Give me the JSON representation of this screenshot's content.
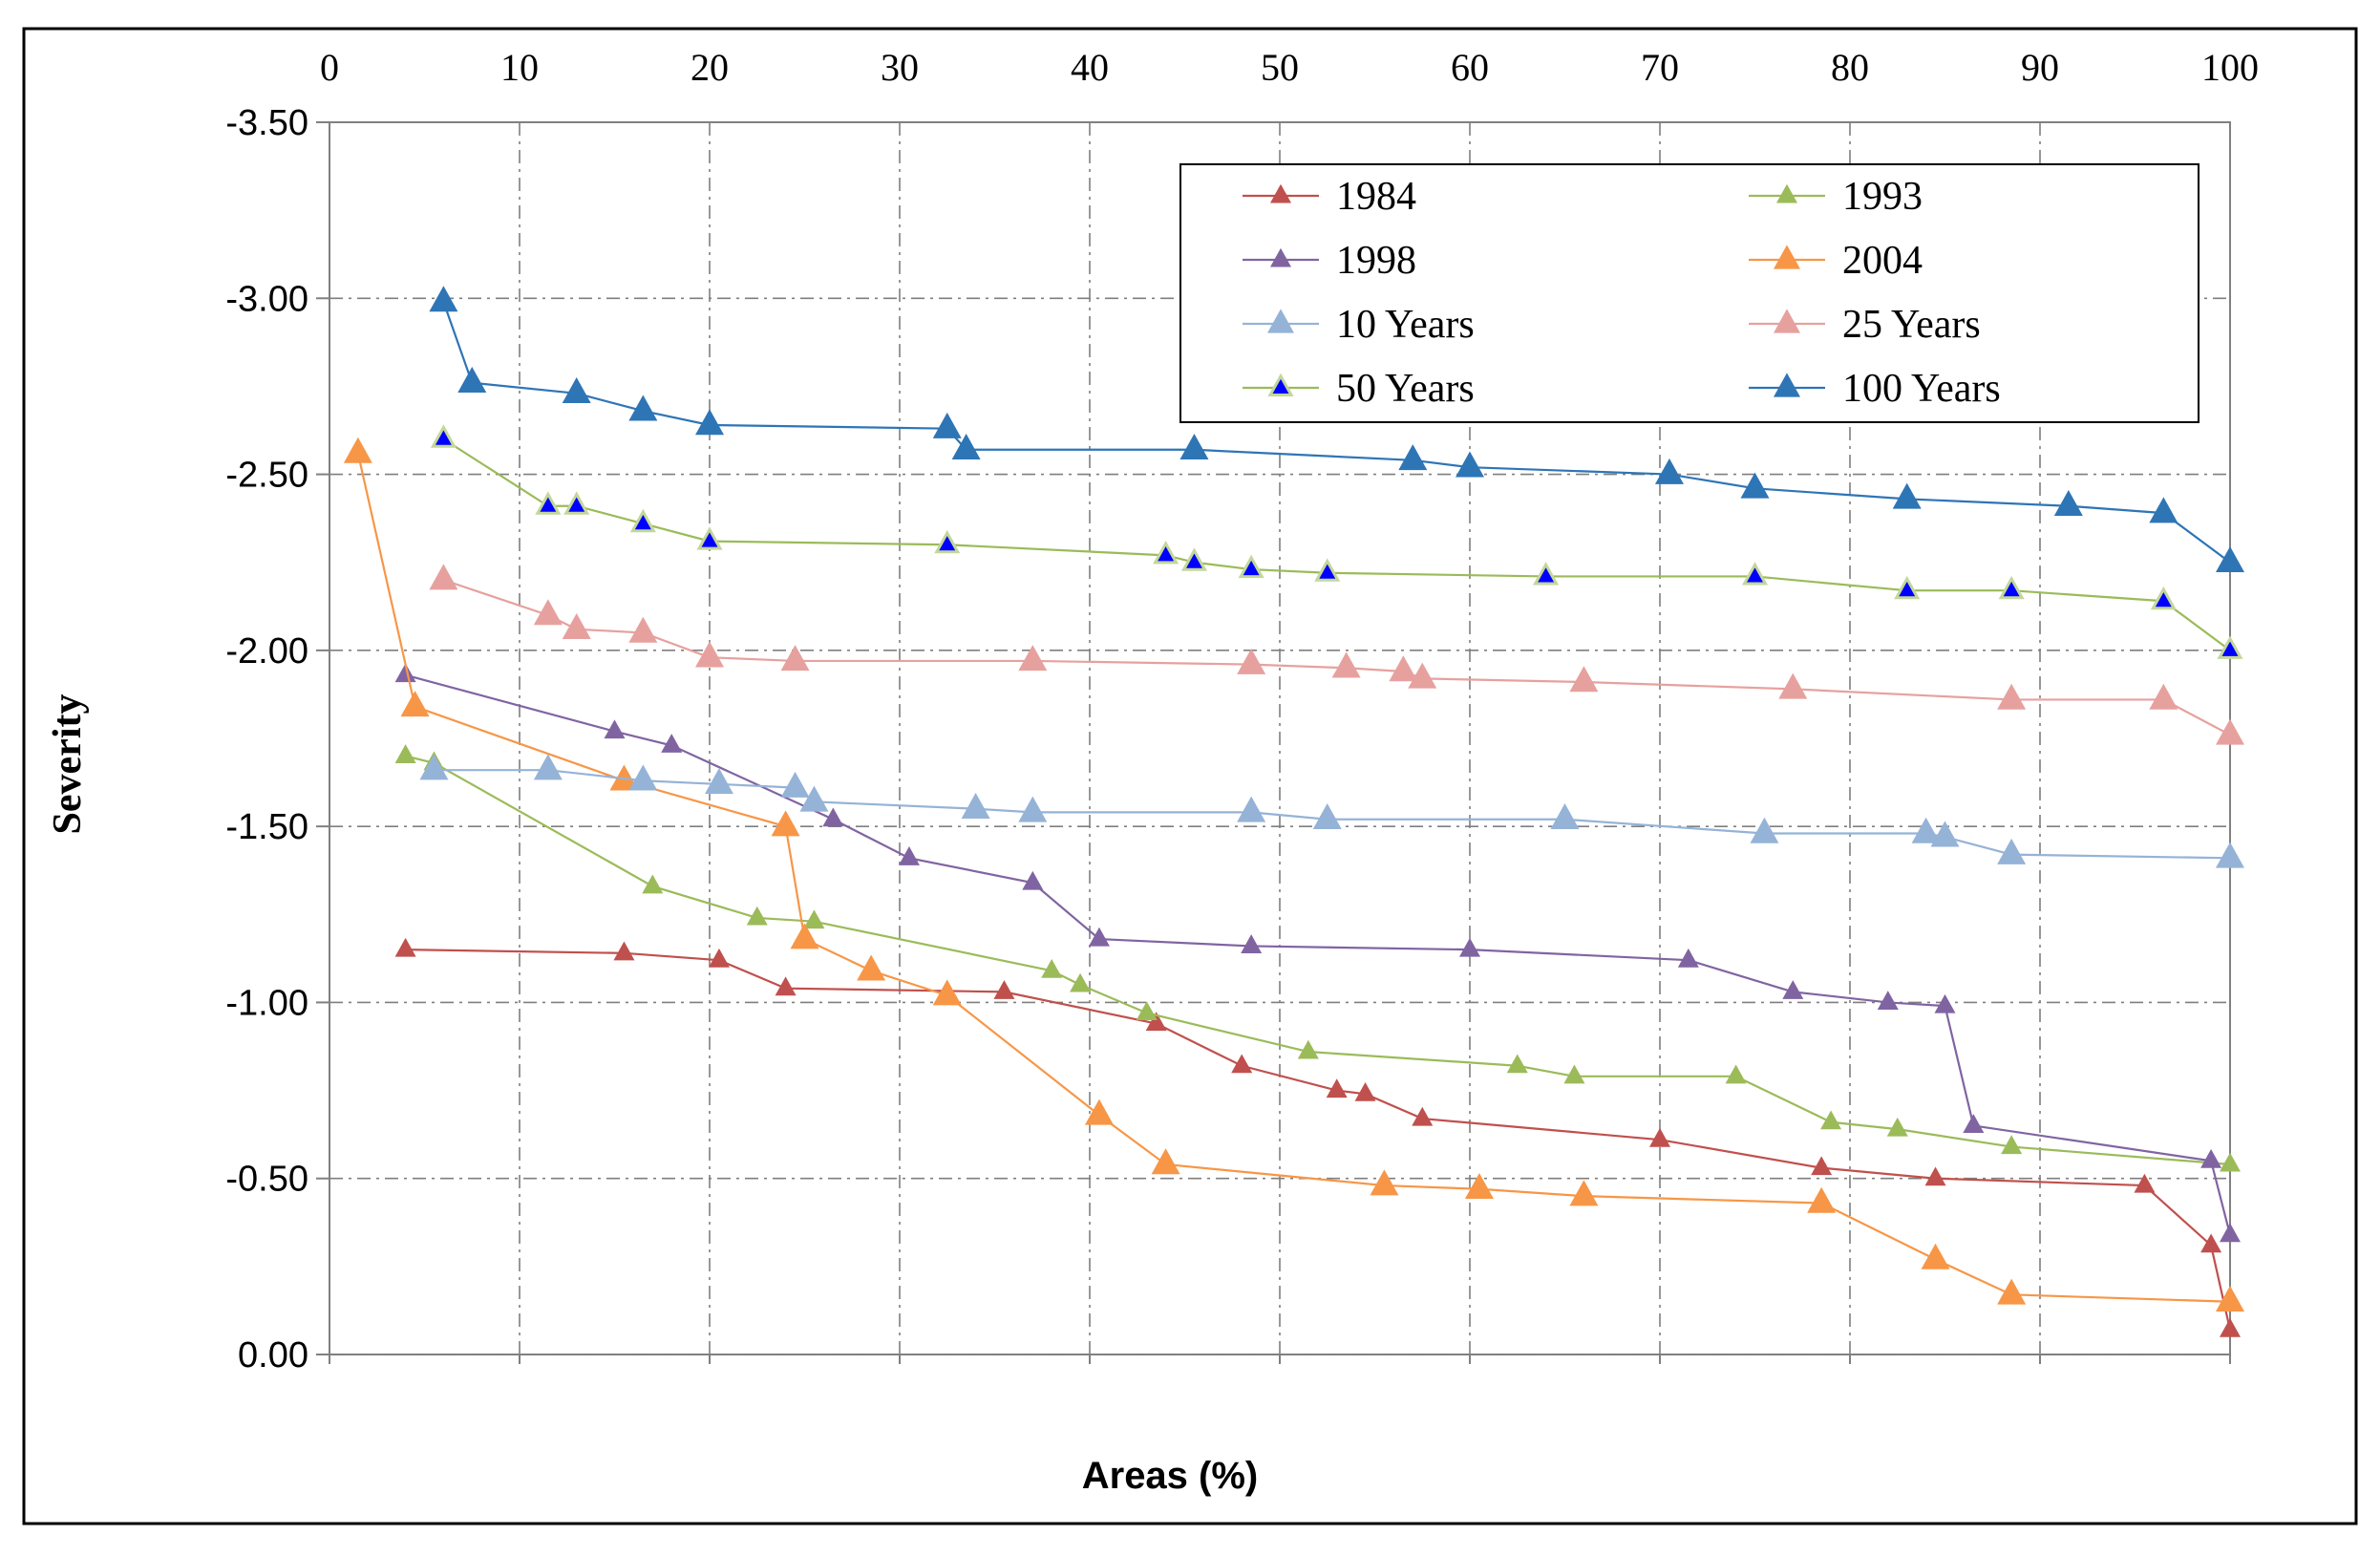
{
  "chart_data": {
    "type": "line",
    "title": "",
    "xlabel": "Areas (%)",
    "ylabel": "Severity",
    "xlim": [
      0,
      100
    ],
    "ylim": [
      0,
      -3.5
    ],
    "x_axis_position": "top",
    "y_axis_inverted": true,
    "x_ticks": [
      "0",
      "10",
      "20",
      "30",
      "40",
      "50",
      "60",
      "70",
      "80",
      "90",
      "100"
    ],
    "y_ticks": [
      "-3.50",
      "-3.00",
      "-2.50",
      "-2.00",
      "-1.50",
      "-1.00",
      "-0.50",
      "0.00"
    ],
    "grid": true,
    "legend_position": "top-right",
    "series": [
      {
        "name": "1984",
        "color": "#c0504d",
        "marker_color": "#c0504d",
        "marker_size": "small",
        "x": [
          4,
          15.5,
          20.5,
          24,
          35.5,
          43.5,
          48,
          53,
          54.5,
          57.5,
          70,
          78.5,
          84.5,
          95.5,
          99,
          100
        ],
        "y": [
          -1.15,
          -1.14,
          -1.12,
          -1.04,
          -1.03,
          -0.94,
          -0.82,
          -0.75,
          -0.74,
          -0.67,
          -0.61,
          -0.53,
          -0.5,
          -0.48,
          -0.31,
          -0.07
        ]
      },
      {
        "name": "1993",
        "color": "#9bbb59",
        "marker_color": "#9bbb59",
        "marker_size": "small",
        "x": [
          4,
          5.5,
          17,
          22.5,
          25.5,
          38,
          39.5,
          43,
          51.5,
          62.5,
          65.5,
          74,
          79,
          82.5,
          88.5,
          100
        ],
        "y": [
          -1.7,
          -1.68,
          -1.33,
          -1.24,
          -1.23,
          -1.09,
          -1.05,
          -0.97,
          -0.86,
          -0.82,
          -0.79,
          -0.79,
          -0.66,
          -0.64,
          -0.59,
          -0.54
        ]
      },
      {
        "name": "1998",
        "color": "#8064a2",
        "marker_color": "#8064a2",
        "marker_size": "small",
        "x": [
          4,
          15,
          18,
          26.5,
          30.5,
          37,
          40.5,
          48.5,
          60,
          71.5,
          77,
          82,
          85,
          86.5,
          99,
          100
        ],
        "y": [
          -1.93,
          -1.77,
          -1.73,
          -1.52,
          -1.41,
          -1.34,
          -1.18,
          -1.16,
          -1.15,
          -1.12,
          -1.03,
          -1.0,
          -0.99,
          -0.65,
          -0.55,
          -0.34
        ]
      },
      {
        "name": "2004",
        "color": "#f79646",
        "marker_color": "#f79646",
        "marker_size": "large",
        "x": [
          1.5,
          4.5,
          15.5,
          24,
          25,
          28.5,
          32.5,
          40.5,
          44,
          55.5,
          60.5,
          66,
          78.5,
          84.5,
          88.5,
          100
        ],
        "y": [
          -2.56,
          -1.84,
          -1.63,
          -1.5,
          -1.18,
          -1.09,
          -1.02,
          -0.68,
          -0.54,
          -0.48,
          -0.47,
          -0.45,
          -0.43,
          -0.27,
          -0.17,
          -0.15
        ]
      },
      {
        "name": "10 Years",
        "color": "#95b3d7",
        "marker_color": "#95b3d7",
        "marker_size": "large",
        "x": [
          5.5,
          11.5,
          16.5,
          20.5,
          24.5,
          25.5,
          34,
          37,
          48.5,
          52.5,
          65,
          75.5,
          84,
          85,
          88.5,
          100
        ],
        "y": [
          -1.66,
          -1.66,
          -1.63,
          -1.62,
          -1.61,
          -1.57,
          -1.55,
          -1.54,
          -1.54,
          -1.52,
          -1.52,
          -1.48,
          -1.48,
          -1.47,
          -1.42,
          -1.41
        ]
      },
      {
        "name": "25 Years",
        "color": "#e6a19e",
        "marker_color": "#e6a19e",
        "marker_size": "large",
        "x": [
          6,
          11.5,
          13,
          16.5,
          20,
          24.5,
          37,
          48.5,
          53.5,
          56.5,
          57.5,
          66,
          77,
          88.5,
          96.5,
          100
        ],
        "y": [
          -2.2,
          -2.1,
          -2.06,
          -2.05,
          -1.98,
          -1.97,
          -1.97,
          -1.96,
          -1.95,
          -1.94,
          -1.92,
          -1.91,
          -1.89,
          -1.86,
          -1.86,
          -1.76
        ]
      },
      {
        "name": "50 Years",
        "color": "#9bbb59",
        "marker_color": "#0000ff",
        "marker_stroke": "#c4d79b",
        "marker_size": "small",
        "x": [
          6,
          11.5,
          13,
          16.5,
          20,
          32.5,
          44,
          45.5,
          48.5,
          52.5,
          64,
          75,
          83,
          88.5,
          96.5,
          100
        ],
        "y": [
          -2.6,
          -2.41,
          -2.41,
          -2.36,
          -2.31,
          -2.3,
          -2.27,
          -2.25,
          -2.23,
          -2.22,
          -2.21,
          -2.21,
          -2.17,
          -2.17,
          -2.14,
          -2.0
        ]
      },
      {
        "name": "100 Years",
        "color": "#2e75b6",
        "marker_color": "#2e75b6",
        "marker_size": "large",
        "x": [
          6,
          7.5,
          13,
          16.5,
          20,
          32.5,
          33.5,
          45.5,
          57,
          60,
          70.5,
          75,
          83,
          91.5,
          96.5,
          100
        ],
        "y": [
          -2.99,
          -2.76,
          -2.73,
          -2.68,
          -2.64,
          -2.63,
          -2.57,
          -2.57,
          -2.54,
          -2.52,
          -2.5,
          -2.46,
          -2.43,
          -2.41,
          -2.39,
          -2.25
        ]
      }
    ]
  }
}
